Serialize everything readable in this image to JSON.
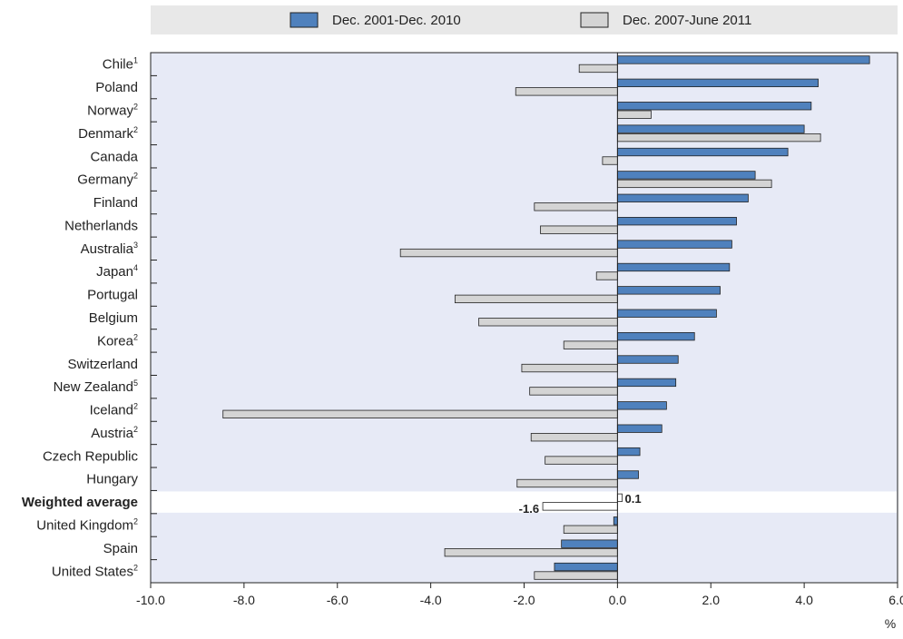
{
  "chart_data": {
    "type": "bar",
    "orientation": "horizontal",
    "unit": "%",
    "xlim": [
      -10,
      6
    ],
    "xticks": [
      -10,
      -8,
      -6,
      -4,
      -2,
      0,
      2,
      4,
      6
    ],
    "xtick_labels": [
      "-10.0",
      "-8.0",
      "-6.0",
      "-4.0",
      "-2.0",
      "0.0",
      "2.0",
      "4.0",
      "6.0"
    ],
    "grid": false,
    "legend_position": "top",
    "categories": [
      {
        "name": "Chile",
        "sup": "1"
      },
      {
        "name": "Poland",
        "sup": ""
      },
      {
        "name": "Norway",
        "sup": "2"
      },
      {
        "name": "Denmark",
        "sup": "2"
      },
      {
        "name": "Canada",
        "sup": ""
      },
      {
        "name": "Germany",
        "sup": "2"
      },
      {
        "name": "Finland",
        "sup": ""
      },
      {
        "name": "Netherlands",
        "sup": ""
      },
      {
        "name": "Australia",
        "sup": "3"
      },
      {
        "name": "Japan",
        "sup": "4"
      },
      {
        "name": "Portugal",
        "sup": ""
      },
      {
        "name": "Belgium",
        "sup": ""
      },
      {
        "name": "Korea",
        "sup": "2"
      },
      {
        "name": "Switzerland",
        "sup": ""
      },
      {
        "name": "New Zealand",
        "sup": "5"
      },
      {
        "name": "Iceland",
        "sup": "2"
      },
      {
        "name": "Austria",
        "sup": "2"
      },
      {
        "name": "Czech Republic",
        "sup": ""
      },
      {
        "name": "Hungary",
        "sup": ""
      },
      {
        "name": "Weighted average",
        "sup": "",
        "bold": true
      },
      {
        "name": "United Kingdom",
        "sup": "2"
      },
      {
        "name": "Spain",
        "sup": ""
      },
      {
        "name": "United States",
        "sup": "2"
      }
    ],
    "series": [
      {
        "name": "Dec. 2001-Dec. 2010",
        "color": "#4f81bd",
        "values": [
          5.4,
          4.3,
          4.15,
          4.0,
          3.65,
          2.95,
          2.8,
          2.55,
          2.45,
          2.4,
          2.2,
          2.12,
          1.65,
          1.3,
          1.25,
          1.05,
          0.95,
          0.48,
          0.45,
          0.1,
          -0.08,
          -1.2,
          -1.35
        ]
      },
      {
        "name": "Dec. 2007-June 2011",
        "color": "#d4d4d4",
        "values": [
          -0.82,
          -2.18,
          0.72,
          4.35,
          -0.32,
          3.3,
          -1.78,
          -1.65,
          -4.65,
          -0.45,
          -3.48,
          -2.97,
          -1.15,
          -2.05,
          -1.88,
          -8.45,
          -1.85,
          -1.55,
          -2.15,
          -1.6,
          -1.15,
          -3.7,
          -1.78
        ]
      }
    ],
    "data_labels": [
      {
        "category_index": 19,
        "series_index": 0,
        "text": "0.1"
      },
      {
        "category_index": 19,
        "series_index": 1,
        "text": "-1.6"
      }
    ],
    "colors": {
      "plot_background": "#e7eaf6",
      "legend_background": "#e8e8e8",
      "highlight_background": "#ffffff",
      "bar_outline": "#222222"
    }
  }
}
